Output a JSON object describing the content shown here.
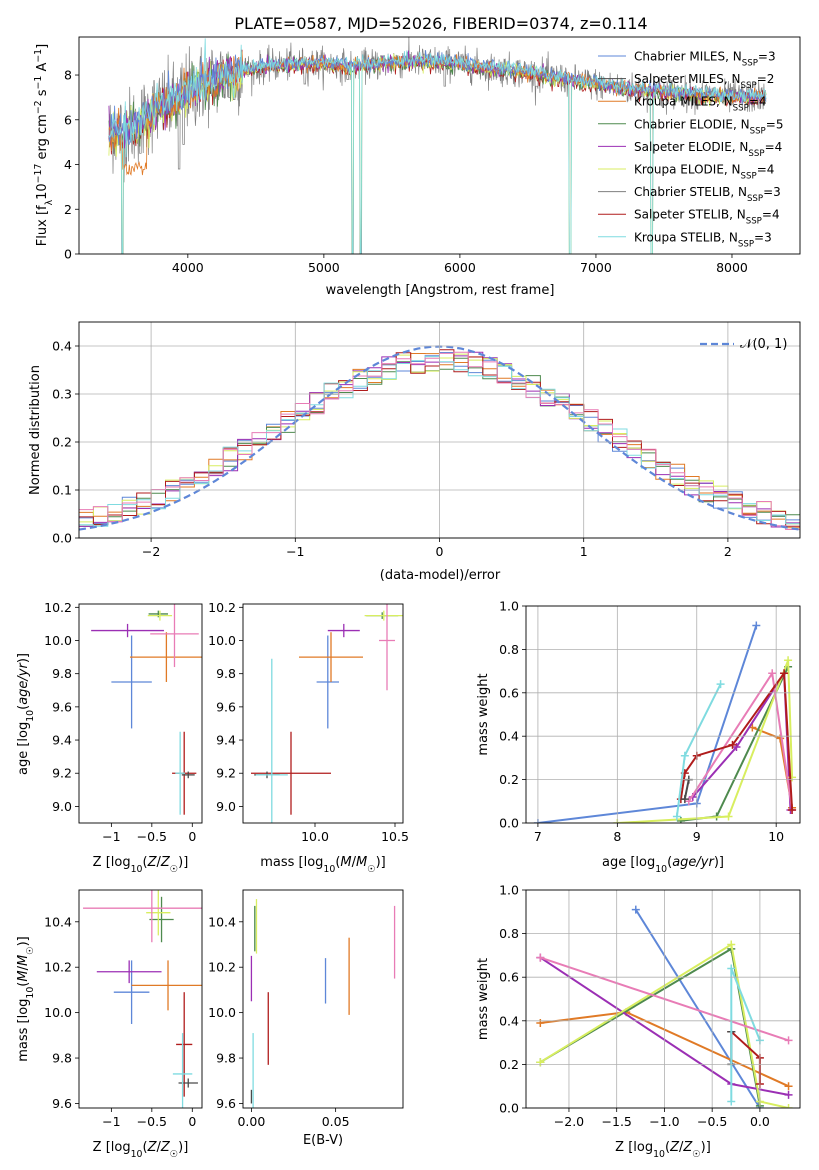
{
  "figure": {
    "title": "PLATE=0587, MJD=52026, FIBERID=0374, z=0.114"
  },
  "colors": {
    "Chabrier MILES": "#5e87d8",
    "Salpeter MILES": "#4a4a4a",
    "Kroupa MILES": "#e07a26",
    "Chabrier ELODIE": "#4e8a4e",
    "Salpeter ELODIE": "#9b2fb4",
    "Kroupa ELODIE": "#d8ee60",
    "Chabrier STELIB": "#7f7f7f",
    "Salpeter STELIB": "#b01c1c",
    "Kroupa STELIB": "#7fdbe0",
    "pink": "#e87cb6"
  },
  "chart_data": [
    {
      "type": "line",
      "name": "spectrum",
      "xlabel": "wavelength [Angstrom, rest frame]",
      "ylabel": "Flux [f_λ 10^-17 erg cm^-2 s^-1 A^-1]",
      "xlim": [
        3200,
        8500
      ],
      "ylim": [
        0,
        9.7
      ],
      "xticks": [
        4000,
        5000,
        6000,
        7000,
        8000
      ],
      "yticks": [
        0,
        2,
        4,
        6,
        8
      ],
      "legend_position": "right",
      "legend": [
        {
          "label": "Chabrier MILES, N_SSP=3",
          "color": "#5e87d8"
        },
        {
          "label": "Salpeter MILES, N_SSP=2",
          "color": "#4a4a4a"
        },
        {
          "label": "Kroupa MILES, N_SSP=4",
          "color": "#e07a26"
        },
        {
          "label": "Chabrier ELODIE, N_SSP=5",
          "color": "#4e8a4e"
        },
        {
          "label": "Salpeter ELODIE, N_SSP=4",
          "color": "#9b2fb4"
        },
        {
          "label": "Kroupa ELODIE, N_SSP=4",
          "color": "#d8ee60"
        },
        {
          "label": "Chabrier STELIB, N_SSP=3",
          "color": "#7f7f7f"
        },
        {
          "label": "Salpeter STELIB, N_SSP=4",
          "color": "#b01c1c"
        },
        {
          "label": "Kroupa STELIB, N_SSP=3",
          "color": "#7fdbe0"
        }
      ],
      "continuum": [
        [
          3420,
          5.4
        ],
        [
          3500,
          5.5
        ],
        [
          3600,
          5.7
        ],
        [
          3700,
          6.2
        ],
        [
          3800,
          6.6
        ],
        [
          3900,
          6.7
        ],
        [
          4000,
          7.3
        ],
        [
          4200,
          7.8
        ],
        [
          4400,
          8.2
        ],
        [
          4600,
          8.4
        ],
        [
          4800,
          8.5
        ],
        [
          5000,
          8.5
        ],
        [
          5200,
          8.4
        ],
        [
          5400,
          8.5
        ],
        [
          5600,
          8.6
        ],
        [
          5800,
          8.6
        ],
        [
          6000,
          8.5
        ],
        [
          6200,
          8.3
        ],
        [
          6400,
          8.2
        ],
        [
          6600,
          8.0
        ],
        [
          6800,
          7.8
        ],
        [
          7000,
          7.6
        ],
        [
          7200,
          7.4
        ],
        [
          7400,
          7.3
        ],
        [
          7600,
          7.2
        ],
        [
          7800,
          7.1
        ],
        [
          8000,
          7.0
        ],
        [
          8250,
          7.0
        ]
      ],
      "absorption_dips": [
        [
          3520,
          0.0
        ],
        [
          3650,
          4.5
        ],
        [
          3935,
          3.8
        ],
        [
          3970,
          4.9
        ],
        [
          4305,
          7.0
        ],
        [
          4340,
          6.9
        ],
        [
          4861,
          7.6
        ],
        [
          5176,
          7.8
        ],
        [
          5210,
          0.0
        ],
        [
          5270,
          0.0
        ],
        [
          5890,
          7.5
        ],
        [
          6563,
          7.5
        ],
        [
          6810,
          0.0
        ],
        [
          7410,
          0.0
        ]
      ]
    },
    {
      "type": "step",
      "name": "residual histogram",
      "xlabel": "(data-model)/error",
      "ylabel": "Normed distribution",
      "xlim": [
        -2.5,
        2.5
      ],
      "ylim": [
        0,
        0.45
      ],
      "xticks": [
        -2,
        -1,
        0,
        1,
        2
      ],
      "yticks": [
        0.0,
        0.1,
        0.2,
        0.3,
        0.4
      ],
      "grid": true,
      "legend": [
        {
          "label": "𝒩(0, 1)",
          "color": "#5e87d8",
          "style": "dashed"
        }
      ],
      "bin_width": 0.1
    },
    {
      "type": "scatter",
      "name": "age vs Z",
      "xlabel": "Z [log10(Z/Z☉)]",
      "ylabel": "age  [log10(age/yr)]",
      "xlim": [
        -1.4,
        0.12
      ],
      "ylim": [
        8.9,
        10.22
      ],
      "xticks": [
        -1,
        -0.5,
        0
      ],
      "xticklabels": [
        "−1",
        "−0.5",
        "0"
      ],
      "yticks": [
        9.0,
        9.2,
        9.4,
        9.6,
        9.8,
        10.0,
        10.2
      ],
      "points": [
        {
          "color": "#5e87d8",
          "x": -0.75,
          "y": 9.75,
          "xerr": 0.25,
          "yerr": 0.28
        },
        {
          "color": "#e07a26",
          "x": -0.32,
          "y": 9.9,
          "xerr": 0.45,
          "yerr": 0.15
        },
        {
          "color": "#4e8a4e",
          "x": -0.42,
          "y": 10.16,
          "xerr": 0.12,
          "yerr": 0.02
        },
        {
          "color": "#9b2fb4",
          "x": -0.8,
          "y": 10.06,
          "xerr": 0.45,
          "yerr": 0.04
        },
        {
          "color": "#d8ee60",
          "x": -0.4,
          "y": 10.15,
          "xerr": 0.15,
          "yerr": 0.03
        },
        {
          "color": "#e87cb6",
          "x": -0.22,
          "y": 10.04,
          "xerr": 0.3,
          "yerr": 0.2
        },
        {
          "color": "#b01c1c",
          "x": -0.1,
          "y": 9.2,
          "xerr": 0.15,
          "yerr": 0.25
        },
        {
          "color": "#4a4a4a",
          "x": -0.05,
          "y": 9.19,
          "xerr": 0.08,
          "yerr": 0.02
        },
        {
          "color": "#7fdbe0",
          "x": -0.15,
          "y": 9.2,
          "xerr": 0.06,
          "yerr": 0.25
        }
      ]
    },
    {
      "type": "scatter",
      "name": "age vs mass",
      "xlabel": "mass [log10(M/M☉)]",
      "ylabel": "",
      "xlim": [
        9.55,
        10.55
      ],
      "ylim": [
        8.9,
        10.22
      ],
      "xticks": [
        10.0,
        10.5
      ],
      "yticks": [
        9.0,
        9.2,
        9.4,
        9.6,
        9.8,
        10.0,
        10.2
      ],
      "points": [
        {
          "color": "#5e87d8",
          "x": 10.08,
          "y": 9.75,
          "xerr": 0.07,
          "yerr": 0.28
        },
        {
          "color": "#e07a26",
          "x": 10.1,
          "y": 9.9,
          "xerr": 0.2,
          "yerr": 0.15
        },
        {
          "color": "#4e8a4e",
          "x": 10.42,
          "y": 10.15,
          "xerr": 0.1,
          "yerr": 0.02
        },
        {
          "color": "#9b2fb4",
          "x": 10.18,
          "y": 10.06,
          "xerr": 0.1,
          "yerr": 0.04
        },
        {
          "color": "#d8ee60",
          "x": 10.43,
          "y": 10.15,
          "xerr": 0.12,
          "yerr": 0.03
        },
        {
          "color": "#e87cb6",
          "x": 10.45,
          "y": 10.0,
          "xerr": 0.05,
          "yerr": 0.3
        },
        {
          "color": "#b01c1c",
          "x": 9.85,
          "y": 9.2,
          "xerr": 0.25,
          "yerr": 0.25
        },
        {
          "color": "#4a4a4a",
          "x": 9.7,
          "y": 9.19,
          "xerr": 0.08,
          "yerr": 0.02
        },
        {
          "color": "#7fdbe0",
          "x": 9.73,
          "y": 9.19,
          "xerr": 0.1,
          "yerr": 0.7
        }
      ]
    },
    {
      "type": "line",
      "name": "mass weight vs age",
      "xlabel": "age  [log10(age/yr)]",
      "ylabel": "mass weight",
      "xlim": [
        6.85,
        10.3
      ],
      "ylim": [
        0,
        1.0
      ],
      "xticks": [
        7,
        8,
        9,
        10
      ],
      "yticks": [
        0.0,
        0.2,
        0.4,
        0.6,
        0.8,
        1.0
      ],
      "grid": true,
      "series": [
        {
          "color": "#5e87d8",
          "points": [
            [
              7.0,
              0.0
            ],
            [
              9.0,
              0.09
            ],
            [
              9.75,
              0.91
            ]
          ]
        },
        {
          "color": "#e07a26",
          "points": [
            [
              9.7,
              0.44
            ],
            [
              10.05,
              0.39
            ],
            [
              10.2,
              0.07
            ]
          ]
        },
        {
          "color": "#4e8a4e",
          "points": [
            [
              8.8,
              0.01
            ],
            [
              9.25,
              0.03
            ],
            [
              10.15,
              0.72
            ]
          ]
        },
        {
          "color": "#9b2fb4",
          "points": [
            [
              8.95,
              0.12
            ],
            [
              9.5,
              0.35
            ],
            [
              10.1,
              0.69
            ],
            [
              10.18,
              0.06
            ]
          ]
        },
        {
          "color": "#d8ee60",
          "points": [
            [
              8.0,
              0.0
            ],
            [
              9.4,
              0.03
            ],
            [
              10.15,
              0.75
            ],
            [
              10.2,
              0.21
            ]
          ]
        },
        {
          "color": "#e87cb6",
          "points": [
            [
              8.9,
              0.1
            ],
            [
              9.95,
              0.69
            ],
            [
              10.2,
              0.06
            ]
          ]
        },
        {
          "color": "#b01c1c",
          "points": [
            [
              8.8,
              0.11
            ],
            [
              8.85,
              0.23
            ],
            [
              9.0,
              0.31
            ],
            [
              9.45,
              0.36
            ],
            [
              10.1,
              0.69
            ],
            [
              10.2,
              0.06
            ]
          ]
        },
        {
          "color": "#4a4a4a",
          "points": [
            [
              8.85,
              0.11
            ],
            [
              8.9,
              0.2
            ]
          ]
        },
        {
          "color": "#7fdbe0",
          "points": [
            [
              8.75,
              0.03
            ],
            [
              8.85,
              0.31
            ],
            [
              9.3,
              0.64
            ]
          ]
        }
      ]
    },
    {
      "type": "scatter",
      "name": "mass vs Z",
      "xlabel": "Z [log10(Z/Z☉)]",
      "ylabel": "mass [log10(M/M☉)]",
      "xlim": [
        -1.4,
        0.12
      ],
      "ylim": [
        9.58,
        10.54
      ],
      "xticks": [
        -1,
        -0.5,
        0
      ],
      "xticklabels": [
        "−1",
        "−0.5",
        "0"
      ],
      "yticks": [
        9.6,
        9.8,
        10.0,
        10.2,
        10.4
      ],
      "points": [
        {
          "color": "#5e87d8",
          "x": -0.75,
          "y": 10.09,
          "xerr": 0.22,
          "yerr": 0.14
        },
        {
          "color": "#e07a26",
          "x": -0.3,
          "y": 10.12,
          "xerr": 0.45,
          "yerr": 0.11
        },
        {
          "color": "#4e8a4e",
          "x": -0.38,
          "y": 10.41,
          "xerr": 0.15,
          "yerr": 0.1
        },
        {
          "color": "#9b2fb4",
          "x": -0.78,
          "y": 10.18,
          "xerr": 0.4,
          "yerr": 0.05
        },
        {
          "color": "#d8ee60",
          "x": -0.42,
          "y": 10.44,
          "xerr": 0.15,
          "yerr": 0.1
        },
        {
          "color": "#e87cb6",
          "x": -0.5,
          "y": 10.46,
          "xerr": 0.85,
          "yerr": 0.15
        },
        {
          "color": "#b01c1c",
          "x": -0.1,
          "y": 9.86,
          "xerr": 0.1,
          "yerr": 0.23
        },
        {
          "color": "#4a4a4a",
          "x": -0.05,
          "y": 9.69,
          "xerr": 0.12,
          "yerr": 0.02
        },
        {
          "color": "#7fdbe0",
          "x": -0.12,
          "y": 9.73,
          "xerr": 0.12,
          "yerr": 0.18
        }
      ]
    },
    {
      "type": "scatter",
      "name": "mass vs E(B-V)",
      "xlabel": "E(B-V)",
      "ylabel": "",
      "xlim": [
        -0.005,
        0.09
      ],
      "ylim": [
        9.58,
        10.54
      ],
      "xticks": [
        0.0,
        0.05
      ],
      "xticklabels": [
        "0.00",
        "0.05"
      ],
      "yticks": [
        9.6,
        9.8,
        10.0,
        10.2,
        10.4
      ],
      "points": [
        {
          "color": "#5e87d8",
          "x": 0.044,
          "y": 10.14,
          "yerr": 0.1
        },
        {
          "color": "#e07a26",
          "x": 0.058,
          "y": 10.16,
          "yerr": 0.17
        },
        {
          "color": "#4e8a4e",
          "x": 0.002,
          "y": 10.37,
          "yerr": 0.1
        },
        {
          "color": "#9b2fb4",
          "x": 0.0,
          "y": 10.15,
          "yerr": 0.1
        },
        {
          "color": "#d8ee60",
          "x": 0.003,
          "y": 10.38,
          "yerr": 0.12
        },
        {
          "color": "#e87cb6",
          "x": 0.085,
          "y": 10.31,
          "yerr": 0.16
        },
        {
          "color": "#b01c1c",
          "x": 0.01,
          "y": 9.93,
          "yerr": 0.16
        },
        {
          "color": "#4a4a4a",
          "x": 0.0,
          "y": 9.63,
          "yerr": 0.03
        },
        {
          "color": "#7fdbe0",
          "x": 0.001,
          "y": 9.74,
          "yerr": 0.17
        }
      ]
    },
    {
      "type": "line",
      "name": "mass weight vs Z",
      "xlabel": "Z [log10(Z/Z☉)]",
      "ylabel": "mass weight",
      "xlim": [
        -2.45,
        0.42
      ],
      "ylim": [
        0,
        1.0
      ],
      "xticks": [
        -2.0,
        -1.5,
        -1.0,
        -0.5,
        0.0
      ],
      "xticklabels": [
        "−2.0",
        "−1.5",
        "−1.0",
        "−0.5",
        "0.0"
      ],
      "yticks": [
        0.0,
        0.2,
        0.4,
        0.6,
        0.8,
        1.0
      ],
      "grid": true,
      "series": [
        {
          "color": "#5e87d8",
          "points": [
            [
              -1.3,
              0.91
            ],
            [
              0.0,
              0.0
            ]
          ]
        },
        {
          "color": "#e07a26",
          "points": [
            [
              -2.3,
              0.39
            ],
            [
              -1.4,
              0.44
            ],
            [
              0.3,
              0.1
            ]
          ]
        },
        {
          "color": "#4e8a4e",
          "points": [
            [
              -2.3,
              0.21
            ],
            [
              -0.3,
              0.73
            ],
            [
              0.0,
              0.01
            ]
          ]
        },
        {
          "color": "#9b2fb4",
          "points": [
            [
              -2.3,
              0.69
            ],
            [
              -0.3,
              0.11
            ],
            [
              0.3,
              0.06
            ]
          ]
        },
        {
          "color": "#d8ee60",
          "points": [
            [
              -2.3,
              0.21
            ],
            [
              -0.3,
              0.75
            ],
            [
              0.0,
              0.03
            ],
            [
              0.3,
              0.0
            ]
          ]
        },
        {
          "color": "#e87cb6",
          "points": [
            [
              -2.3,
              0.69
            ],
            [
              0.3,
              0.31
            ]
          ]
        },
        {
          "color": "#b01c1c",
          "points": [
            [
              -0.3,
              0.35
            ],
            [
              0.0,
              0.23
            ],
            [
              0.0,
              0.11
            ]
          ]
        },
        {
          "color": "#4a4a4a",
          "points": [
            [
              -0.3,
              0.2
            ],
            [
              -0.3,
              0.35
            ]
          ]
        },
        {
          "color": "#7fdbe0",
          "points": [
            [
              -0.3,
              0.03
            ],
            [
              -0.3,
              0.64
            ],
            [
              0.0,
              0.31
            ]
          ]
        }
      ]
    }
  ]
}
